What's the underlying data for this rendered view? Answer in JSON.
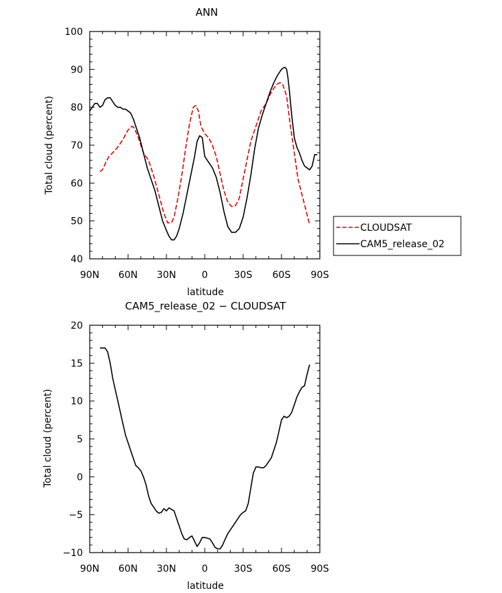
{
  "chart_data": [
    {
      "type": "line",
      "title": "ANN",
      "xlabel": "latitude",
      "ylabel": "Total cloud (percent)",
      "xlim": [
        -90,
        90
      ],
      "ylim": [
        40,
        100
      ],
      "xticks": [
        -90,
        -60,
        -30,
        0,
        30,
        60,
        90
      ],
      "xtick_labels": [
        "90N",
        "60N",
        "30N",
        "0",
        "30S",
        "60S",
        "90S"
      ],
      "yticks": [
        40,
        50,
        60,
        70,
        80,
        90,
        100
      ],
      "ytick_labels": [
        "40",
        "50",
        "60",
        "70",
        "80",
        "90",
        "100"
      ],
      "legend": {
        "position": "right",
        "entries": [
          "CLOUDSAT",
          "CAM5_release_02"
        ]
      },
      "series": [
        {
          "name": "CLOUDSAT",
          "color": "#e60000",
          "dash": "dashed",
          "x": [
            -82,
            -80,
            -78,
            -75,
            -72,
            -68,
            -64,
            -60,
            -57,
            -55,
            -52,
            -48,
            -44,
            -40,
            -36,
            -32,
            -29,
            -26,
            -24,
            -21,
            -18,
            -15,
            -12,
            -9,
            -7,
            -5,
            -3,
            0,
            3,
            6,
            9,
            12,
            15,
            18,
            21,
            24,
            27,
            30,
            33,
            36,
            40,
            44,
            48,
            52,
            56,
            59,
            61,
            64,
            67,
            70,
            73,
            76,
            79,
            82
          ],
          "values": [
            63,
            63.5,
            65,
            67,
            68,
            69.5,
            71.5,
            74,
            75,
            74.5,
            72,
            68,
            66,
            62,
            57,
            52,
            49.5,
            49.5,
            51,
            56,
            62,
            69,
            75.5,
            80,
            80.5,
            79,
            75,
            73,
            72,
            70,
            67,
            62.5,
            58,
            55,
            53.8,
            54,
            56,
            61,
            66,
            71,
            75,
            79,
            81,
            84,
            86,
            86.5,
            86,
            83,
            75,
            68,
            61,
            57,
            53,
            49
          ]
        },
        {
          "name": "CAM5_release_02",
          "color": "#000000",
          "dash": "solid",
          "x": [
            -90,
            -88,
            -86,
            -84,
            -82,
            -80,
            -78,
            -76,
            -74,
            -72,
            -70,
            -68,
            -66,
            -64,
            -62,
            -60,
            -58,
            -56,
            -54,
            -51,
            -48,
            -45,
            -42,
            -39,
            -36,
            -33,
            -30,
            -28,
            -26,
            -24,
            -22,
            -20,
            -17,
            -14,
            -11,
            -8,
            -6,
            -4,
            -2,
            0,
            3,
            6,
            9,
            12,
            15,
            18,
            21,
            24,
            27,
            30,
            33,
            36,
            39,
            42,
            45,
            48,
            51,
            54,
            57,
            60,
            62,
            63,
            64,
            65,
            66,
            68,
            70,
            72,
            74,
            76,
            78,
            80,
            82,
            84,
            86,
            88
          ],
          "values": [
            79,
            80,
            81,
            81,
            80,
            80.5,
            82,
            82.5,
            82.5,
            81.5,
            80.5,
            80,
            80,
            79.5,
            79.5,
            79,
            78.5,
            77,
            75,
            72,
            68,
            64,
            61,
            58,
            54,
            50,
            47.5,
            46,
            45,
            45,
            46,
            48,
            52,
            57,
            62,
            67,
            71,
            72.5,
            72,
            67,
            65.5,
            64,
            61.5,
            57.5,
            52.5,
            48.5,
            47,
            47,
            48,
            51,
            56,
            62,
            69,
            74.5,
            78,
            81,
            84,
            86.5,
            88.5,
            90,
            90.5,
            90.5,
            90,
            88,
            85,
            78,
            72,
            69.5,
            68,
            66,
            64.5,
            64,
            63.5,
            64.5,
            67.5,
            67.5
          ]
        }
      ]
    },
    {
      "type": "line",
      "title": "CAM5_release_02 − CLOUDSAT",
      "xlabel": "latitude",
      "ylabel": "Total cloud (percent)",
      "xlim": [
        -90,
        90
      ],
      "ylim": [
        -10,
        20
      ],
      "xticks": [
        -90,
        -60,
        -30,
        0,
        30,
        60,
        90
      ],
      "xtick_labels": [
        "90N",
        "60N",
        "30N",
        "0",
        "30S",
        "60S",
        "90S"
      ],
      "yticks": [
        -10,
        -5,
        0,
        5,
        10,
        15,
        20
      ],
      "ytick_labels": [
        "−10",
        "−5",
        "0",
        "5",
        "10",
        "15",
        "20"
      ],
      "series": [
        {
          "name": "CAM5_release_02 − CLOUDSAT",
          "color": "#000000",
          "dash": "solid",
          "x": [
            -82,
            -80,
            -78,
            -76,
            -74,
            -72,
            -70,
            -68,
            -66,
            -64,
            -62,
            -60,
            -58,
            -56,
            -54,
            -52,
            -50,
            -48,
            -46,
            -44,
            -42,
            -40,
            -38,
            -36,
            -34,
            -32,
            -30,
            -28,
            -26,
            -24,
            -22,
            -20,
            -18,
            -16,
            -14,
            -12,
            -10,
            -8,
            -6,
            -4,
            -2,
            0,
            2,
            4,
            6,
            8,
            10,
            12,
            14,
            16,
            18,
            20,
            22,
            24,
            26,
            28,
            30,
            32,
            34,
            36,
            38,
            40,
            42,
            44,
            46,
            48,
            50,
            52,
            54,
            56,
            58,
            60,
            62,
            64,
            66,
            68,
            70,
            72,
            74,
            76,
            78,
            80,
            82
          ],
          "values": [
            17,
            17,
            17,
            16.5,
            15,
            13,
            11.5,
            10,
            8.5,
            7,
            5.5,
            4.5,
            3.5,
            2.5,
            1.5,
            1.2,
            0.8,
            0,
            -1,
            -2.5,
            -3.5,
            -4,
            -4.5,
            -4.8,
            -4.7,
            -4.2,
            -4.5,
            -4.1,
            -4.3,
            -4.5,
            -5.5,
            -6.5,
            -7.5,
            -8.2,
            -8.3,
            -8,
            -7.8,
            -8.5,
            -9.2,
            -8.7,
            -8,
            -8,
            -8.1,
            -8.2,
            -8.7,
            -9.3,
            -9.5,
            -9.5,
            -9,
            -8.2,
            -7.5,
            -7,
            -6.5,
            -6,
            -5.5,
            -5,
            -4.7,
            -4.5,
            -3.5,
            -1.5,
            0.5,
            1.3,
            1.3,
            1.2,
            1.2,
            1.5,
            2,
            2.5,
            3.5,
            4.5,
            6,
            7.5,
            8,
            7.8,
            8,
            8.5,
            9.5,
            10.5,
            11.2,
            11.8,
            12,
            13.5,
            14.8
          ]
        }
      ]
    }
  ]
}
